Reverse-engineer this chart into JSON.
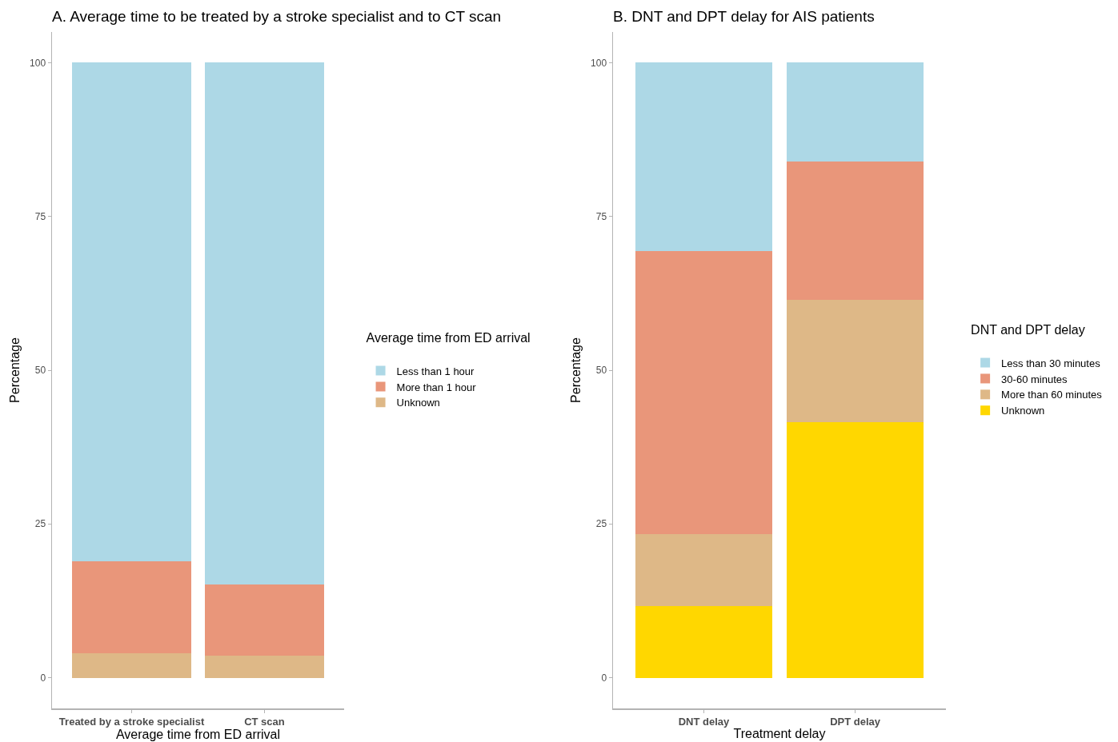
{
  "chart_data": [
    {
      "type": "bar",
      "stacked": true,
      "title": "A. Average time to be treated by a stroke specialist and to CT scan",
      "xlabel": "Average time from ED arrival",
      "ylabel": "Percentage",
      "legend_title": "Average time from ED arrival",
      "categories": [
        "Treated by a stroke specialist",
        "CT scan"
      ],
      "series": [
        {
          "name": "Unknown",
          "color": "#deb887",
          "values": [
            4.0,
            3.6
          ]
        },
        {
          "name": "More than 1 hour",
          "color": "#e9967a",
          "values": [
            14.9,
            11.5
          ]
        },
        {
          "name": "Less than 1 hour",
          "color": "#add8e6",
          "values": [
            81.1,
            84.9
          ]
        }
      ],
      "ylim": [
        -5,
        105
      ],
      "yticks": [
        0,
        25,
        50,
        75,
        100
      ],
      "grid": false,
      "legend": "right"
    },
    {
      "type": "bar",
      "stacked": true,
      "title": "B. DNT and DPT delay for AIS patients",
      "xlabel": "Treatment delay",
      "ylabel": "Percentage",
      "legend_title": "DNT and DPT delay",
      "categories": [
        "DNT delay",
        "DPT delay"
      ],
      "series": [
        {
          "name": "Unknown",
          "color": "#ffd700",
          "values": [
            11.6,
            41.5
          ]
        },
        {
          "name": "More than 60 minutes",
          "color": "#deb887",
          "values": [
            11.7,
            20.0
          ]
        },
        {
          "name": "30-60 minutes",
          "color": "#e9967a",
          "values": [
            46.1,
            22.5
          ]
        },
        {
          "name": "Less than 30 minutes",
          "color": "#add8e6",
          "values": [
            30.6,
            16.0
          ]
        }
      ],
      "ylim": [
        -5,
        105
      ],
      "yticks": [
        0,
        25,
        50,
        75,
        100
      ],
      "grid": false,
      "legend": "right"
    }
  ]
}
